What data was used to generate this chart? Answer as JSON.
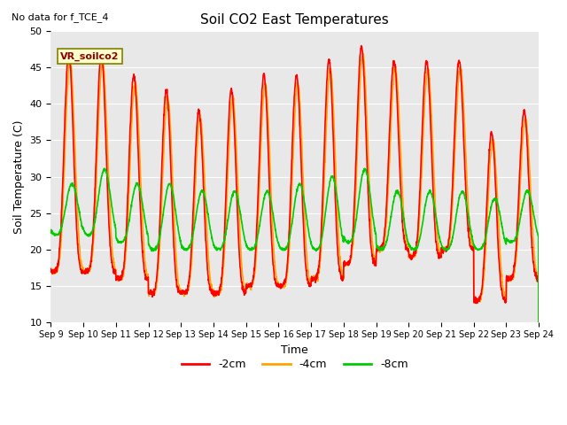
{
  "title": "Soil CO2 East Temperatures",
  "annotation": "No data for f_TCE_4",
  "xlabel": "Time",
  "ylabel": "Soil Temperature (C)",
  "ylim": [
    10,
    50
  ],
  "xtick_labels": [
    "Sep 9",
    "Sep 10",
    "Sep 11",
    "Sep 12",
    "Sep 13",
    "Sep 14",
    "Sep 15",
    "Sep 16",
    "Sep 17",
    "Sep 18",
    "Sep 19",
    "Sep 20",
    "Sep 21",
    "Sep 22",
    "Sep 23",
    "Sep 24"
  ],
  "color_2cm": "#ff0000",
  "color_4cm": "#ffa500",
  "color_8cm": "#00cc00",
  "legend_label_2cm": "-2cm",
  "legend_label_4cm": "-4cm",
  "legend_label_8cm": "-8cm",
  "legend_box_label": "VR_soilco2",
  "bg_color": "#e8e8e8",
  "outer_bg": "#ffffff",
  "line_width": 1.2,
  "n_days": 15,
  "pts_per_day": 144
}
